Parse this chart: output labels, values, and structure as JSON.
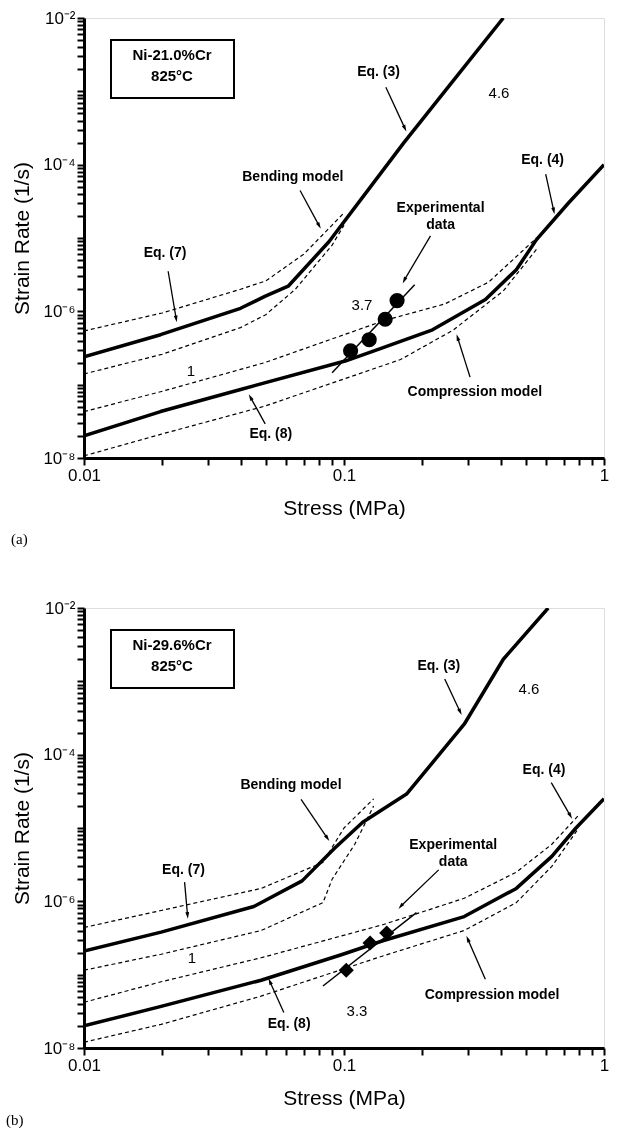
{
  "chart_data": [
    {
      "type": "line",
      "title": "Ni-21.0%Cr\n825°C",
      "xlabel": "Stress (MPa)",
      "ylabel": "Strain Rate (1/s)",
      "log": "xy",
      "grid": false,
      "xlim": [
        0.01,
        1
      ],
      "ylim": [
        1e-08,
        0.01
      ],
      "xticks": [
        0.01,
        {
          "value": 0.02,
          "label": null
        },
        {
          "value": 0.03,
          "label": null
        },
        {
          "value": 0.04,
          "label": null
        },
        {
          "value": 0.05,
          "label": null
        },
        {
          "value": 0.06,
          "label": null
        },
        {
          "value": 0.07,
          "label": null
        },
        {
          "value": 0.08,
          "label": null
        },
        {
          "value": 0.09,
          "label": null
        },
        0.1,
        {
          "value": 0.2,
          "label": null
        },
        {
          "value": 0.3,
          "label": null
        },
        {
          "value": 0.4,
          "label": null
        },
        {
          "value": 0.5,
          "label": null
        },
        {
          "value": 0.6,
          "label": null
        },
        {
          "value": 0.7,
          "label": null
        },
        {
          "value": 0.8,
          "label": null
        },
        {
          "value": 0.9,
          "label": null
        },
        1
      ],
      "yticks": [
        {
          "value": 1e-08,
          "label": "10⁻⁸"
        },
        {
          "value": 2e-08,
          "label": null
        },
        {
          "value": 3e-08,
          "label": null
        },
        {
          "value": 4e-08,
          "label": null
        },
        {
          "value": 5e-08,
          "label": null
        },
        {
          "value": 6e-08,
          "label": null
        },
        {
          "value": 7e-08,
          "label": null
        },
        {
          "value": 8e-08,
          "label": null
        },
        {
          "value": 9e-08,
          "label": null
        },
        {
          "value": 1e-07,
          "label": null
        },
        {
          "value": 2e-07,
          "label": null
        },
        {
          "value": 3e-07,
          "label": null
        },
        {
          "value": 4e-07,
          "label": null
        },
        {
          "value": 5e-07,
          "label": null
        },
        {
          "value": 6e-07,
          "label": null
        },
        {
          "value": 7e-07,
          "label": null
        },
        {
          "value": 8e-07,
          "label": null
        },
        {
          "value": 9e-07,
          "label": null
        },
        {
          "value": 1e-06,
          "label": "10⁻⁶"
        },
        {
          "value": 2e-06,
          "label": null
        },
        {
          "value": 3e-06,
          "label": null
        },
        {
          "value": 4e-06,
          "label": null
        },
        {
          "value": 5e-06,
          "label": null
        },
        {
          "value": 6e-06,
          "label": null
        },
        {
          "value": 7e-06,
          "label": null
        },
        {
          "value": 8e-06,
          "label": null
        },
        {
          "value": 9e-06,
          "label": null
        },
        {
          "value": 1e-05,
          "label": null
        },
        {
          "value": 2e-05,
          "label": null
        },
        {
          "value": 3e-05,
          "label": null
        },
        {
          "value": 4e-05,
          "label": null
        },
        {
          "value": 5e-05,
          "label": null
        },
        {
          "value": 6e-05,
          "label": null
        },
        {
          "value": 7e-05,
          "label": null
        },
        {
          "value": 8e-05,
          "label": null
        },
        {
          "value": 9e-05,
          "label": null
        },
        {
          "value": 0.0001,
          "label": "10⁻⁴"
        },
        {
          "value": 0.0002,
          "label": null
        },
        {
          "value": 0.0003,
          "label": null
        },
        {
          "value": 0.0004,
          "label": null
        },
        {
          "value": 0.0005,
          "label": null
        },
        {
          "value": 0.0006,
          "label": null
        },
        {
          "value": 0.0007,
          "label": null
        },
        {
          "value": 0.0008,
          "label": null
        },
        {
          "value": 0.0009,
          "label": null
        },
        {
          "value": 0.001,
          "label": null
        },
        {
          "value": 0.002,
          "label": null
        },
        {
          "value": 0.003,
          "label": null
        },
        {
          "value": 0.004,
          "label": null
        },
        {
          "value": 0.005,
          "label": null
        },
        {
          "value": 0.006,
          "label": null
        },
        {
          "value": 0.007,
          "label": null
        },
        {
          "value": 0.008,
          "label": null
        },
        {
          "value": 0.009,
          "label": null
        },
        {
          "value": 0.01,
          "label": "10⁻²"
        }
      ],
      "series": [
        {
          "color": "#000000",
          "line_style": "solid",
          "x": [
            0.01,
            0.0197,
            0.04,
            0.0496,
            0.061,
            0.0875,
            0.12,
            0.17,
            0.244,
            0.41
          ],
          "values": [
            2.4e-07,
            4.8e-07,
            1.1e-06,
            1.6e-06,
            2.2e-06,
            8.9e-06,
            3.9e-05,
            0.0002,
            0.001,
            0.01
          ]
        },
        {
          "color": "#000000",
          "line_style": "solid",
          "x": [
            0.01,
            0.0197,
            0.04,
            0.101,
            0.138,
            0.219,
            0.35,
            0.46,
            0.55,
            0.73,
            1.0
          ],
          "values": [
            2e-08,
            4.3e-08,
            8.6e-08,
            2.1e-07,
            3.1e-07,
            5.6e-07,
            1.45e-06,
            3.7e-06,
            9.5e-06,
            3e-05,
            0.0001
          ]
        },
        {
          "color": "#000000",
          "line_style": "dashed",
          "x": [
            0.01,
            0.02,
            0.04,
            0.05,
            0.07,
            0.09,
            0.1
          ],
          "values": [
            5.4e-07,
            9.5e-07,
            2e-06,
            2.6e-06,
            6e-06,
            1.5e-05,
            2.2e-05
          ]
        },
        {
          "color": "#000000",
          "line_style": "dashed",
          "x": [
            0.01,
            0.02,
            0.04,
            0.05,
            0.065,
            0.09,
            0.1
          ],
          "values": [
            1.4e-07,
            2.6e-07,
            6e-07,
            9e-07,
            2e-06,
            8e-06,
            1.5e-05
          ]
        },
        {
          "color": "#000000",
          "line_style": "dashed",
          "x": [
            0.01,
            0.0197,
            0.0496,
            0.143,
            0.244,
            0.36,
            0.55
          ],
          "values": [
            4.3e-08,
            8e-08,
            2e-07,
            7.5e-07,
            1.26e-06,
            2.5e-06,
            1e-05
          ]
        },
        {
          "color": "#000000",
          "line_style": "dashed",
          "x": [
            0.01,
            0.0197,
            0.0496,
            0.165,
            0.262,
            0.41,
            0.55
          ],
          "values": [
            1.07e-08,
            2.1e-08,
            5.1e-08,
            2.2e-07,
            5.5e-07,
            1.9e-06,
            7e-06
          ]
        },
        {
          "color": "#000000",
          "line_style": "solid",
          "x": [
            0.09,
            0.187
          ],
          "values": [
            1.45e-07,
            2.3e-06
          ]
        },
        {
          "type": "scatter",
          "color": "#000000",
          "marker": "circle",
          "x": [
            0.106,
            0.125,
            0.144,
            0.16
          ],
          "values": [
            2.9e-07,
            4.1e-07,
            7.8e-07,
            1.4e-06
          ]
        }
      ],
      "annotations": [
        {
          "text": "Eq.  (3)",
          "x": 0.171,
          "y": 0.00032
        },
        {
          "text": "Bending  model",
          "x": 0.08,
          "y": 1.5e-05
        },
        {
          "text": "Eq.  (4)",
          "x": 0.64,
          "y": 2.4e-05
        },
        {
          "text": "Experimental\ndata",
          "x": 0.171,
          "y": 2.7e-06
        },
        {
          "text": "Eq.  (7)",
          "x": 0.0226,
          "y": 8.1e-07
        },
        {
          "text": "Compression  model",
          "x": 0.274,
          "y": 4.3e-07
        },
        {
          "text": "Eq.  (8)",
          "x": 0.0438,
          "y": 6.6e-08
        },
        "4.6",
        "3.7",
        "1",
        "(a)"
      ]
    },
    {
      "type": "line",
      "title": "Ni-29.6%Cr\n825°C",
      "xlabel": "Stress (MPa)",
      "ylabel": "Strain Rate (1/s)",
      "log": "xy",
      "grid": false,
      "xlim": [
        0.01,
        1
      ],
      "ylim": [
        1e-08,
        0.01
      ],
      "xticks": [
        0.01,
        {
          "value": 0.02,
          "label": null
        },
        {
          "value": 0.03,
          "label": null
        },
        {
          "value": 0.04,
          "label": null
        },
        {
          "value": 0.05,
          "label": null
        },
        {
          "value": 0.06,
          "label": null
        },
        {
          "value": 0.07,
          "label": null
        },
        {
          "value": 0.08,
          "label": null
        },
        {
          "value": 0.09,
          "label": null
        },
        0.1,
        {
          "value": 0.2,
          "label": null
        },
        {
          "value": 0.3,
          "label": null
        },
        {
          "value": 0.4,
          "label": null
        },
        {
          "value": 0.5,
          "label": null
        },
        {
          "value": 0.6,
          "label": null
        },
        {
          "value": 0.7,
          "label": null
        },
        {
          "value": 0.8,
          "label": null
        },
        {
          "value": 0.9,
          "label": null
        },
        1
      ],
      "yticks": [
        {
          "value": 1e-08,
          "label": "10⁻⁸"
        },
        {
          "value": 2e-08,
          "label": null
        },
        {
          "value": 3e-08,
          "label": null
        },
        {
          "value": 4e-08,
          "label": null
        },
        {
          "value": 5e-08,
          "label": null
        },
        {
          "value": 6e-08,
          "label": null
        },
        {
          "value": 7e-08,
          "label": null
        },
        {
          "value": 8e-08,
          "label": null
        },
        {
          "value": 9e-08,
          "label": null
        },
        {
          "value": 1e-07,
          "label": null
        },
        {
          "value": 2e-07,
          "label": null
        },
        {
          "value": 3e-07,
          "label": null
        },
        {
          "value": 4e-07,
          "label": null
        },
        {
          "value": 5e-07,
          "label": null
        },
        {
          "value": 6e-07,
          "label": null
        },
        {
          "value": 7e-07,
          "label": null
        },
        {
          "value": 8e-07,
          "label": null
        },
        {
          "value": 9e-07,
          "label": null
        },
        {
          "value": 1e-06,
          "label": "10⁻⁶"
        },
        {
          "value": 2e-06,
          "label": null
        },
        {
          "value": 3e-06,
          "label": null
        },
        {
          "value": 4e-06,
          "label": null
        },
        {
          "value": 5e-06,
          "label": null
        },
        {
          "value": 6e-06,
          "label": null
        },
        {
          "value": 7e-06,
          "label": null
        },
        {
          "value": 8e-06,
          "label": null
        },
        {
          "value": 9e-06,
          "label": null
        },
        {
          "value": 1e-05,
          "label": null
        },
        {
          "value": 2e-05,
          "label": null
        },
        {
          "value": 3e-05,
          "label": null
        },
        {
          "value": 4e-05,
          "label": null
        },
        {
          "value": 5e-05,
          "label": null
        },
        {
          "value": 6e-05,
          "label": null
        },
        {
          "value": 7e-05,
          "label": null
        },
        {
          "value": 8e-05,
          "label": null
        },
        {
          "value": 9e-05,
          "label": null
        },
        {
          "value": 0.0001,
          "label": "10⁻⁴"
        },
        {
          "value": 0.0002,
          "label": null
        },
        {
          "value": 0.0003,
          "label": null
        },
        {
          "value": 0.0004,
          "label": null
        },
        {
          "value": 0.0005,
          "label": null
        },
        {
          "value": 0.0006,
          "label": null
        },
        {
          "value": 0.0007,
          "label": null
        },
        {
          "value": 0.0008,
          "label": null
        },
        {
          "value": 0.0009,
          "label": null
        },
        {
          "value": 0.001,
          "label": null
        },
        {
          "value": 0.002,
          "label": null
        },
        {
          "value": 0.003,
          "label": null
        },
        {
          "value": 0.004,
          "label": null
        },
        {
          "value": 0.005,
          "label": null
        },
        {
          "value": 0.006,
          "label": null
        },
        {
          "value": 0.007,
          "label": null
        },
        {
          "value": 0.008,
          "label": null
        },
        {
          "value": 0.009,
          "label": null
        },
        {
          "value": 0.01,
          "label": "10⁻²"
        }
      ],
      "series": [
        {
          "color": "#000000",
          "line_style": "solid",
          "x": [
            0.01,
            0.0198,
            0.045,
            0.069,
            0.092,
            0.118,
            0.174,
            0.29,
            0.41,
            0.61
          ],
          "values": [
            2.1e-07,
            3.8e-07,
            8.5e-07,
            1.9e-06,
            5.3e-06,
            1.2e-05,
            2.9e-05,
            0.00026,
            0.002,
            0.01
          ]
        },
        {
          "color": "#000000",
          "line_style": "solid",
          "x": [
            0.01,
            0.0198,
            0.048,
            0.099,
            0.141,
            0.29,
            0.46,
            0.63,
            0.78,
            1.0
          ],
          "values": [
            2e-08,
            3.7e-08,
            8.4e-08,
            1.9e-07,
            2.9e-07,
            6.2e-07,
            1.5e-06,
            4.1e-06,
            1e-05,
            2.5e-05
          ]
        },
        {
          "color": "#000000",
          "line_style": "dashed",
          "x": [
            0.01,
            0.0198,
            0.048,
            0.083,
            0.1,
            0.13
          ],
          "values": [
            4.4e-07,
            7.5e-07,
            1.5e-06,
            3.4e-06,
            1e-05,
            2.5e-05
          ]
        },
        {
          "color": "#000000",
          "line_style": "dashed",
          "x": [
            0.01,
            0.0198,
            0.048,
            0.083,
            0.09,
            0.11,
            0.13
          ],
          "values": [
            1.15e-07,
            1.9e-07,
            4e-07,
            9.6e-07,
            2e-06,
            6e-06,
            2e-05
          ]
        },
        {
          "color": "#000000",
          "line_style": "dashed",
          "x": [
            0.01,
            0.0198,
            0.048,
            0.141,
            0.29,
            0.46,
            0.63,
            0.8
          ],
          "values": [
            4.2e-08,
            8e-08,
            1.7e-07,
            4.8e-07,
            1.1e-06,
            2.5e-06,
            6e-06,
            1.5e-05
          ]
        },
        {
          "color": "#000000",
          "line_style": "dashed",
          "x": [
            0.01,
            0.0198,
            0.048,
            0.141,
            0.29,
            0.46,
            0.63,
            0.8
          ],
          "values": [
            1.2e-08,
            2.1e-08,
            5.1e-08,
            1.8e-07,
            4e-07,
            9.6e-07,
            3e-06,
            1e-05
          ]
        },
        {
          "color": "#000000",
          "line_style": "solid",
          "x": [
            0.083,
            0.19
          ],
          "values": [
            7e-08,
            7e-07
          ]
        },
        {
          "type": "scatter",
          "color": "#000000",
          "marker": "diamond",
          "x": [
            0.102,
            0.126,
            0.146
          ],
          "values": [
            1.15e-07,
            2.7e-07,
            3.7e-07
          ]
        }
      ],
      "annotations": [
        {
          "text": "Eq.  (3)",
          "x": 0.279,
          "y": 0.00039
        },
        {
          "text": "Bending model",
          "x": 0.086,
          "y": 7.4e-06
        },
        {
          "text": "Eq.  (4)",
          "x": 0.74,
          "y": 1.5e-05
        },
        {
          "text": "Experimental\ndata",
          "x": 0.166,
          "y": 8.7e-07
        },
        {
          "text": "Eq.  (7)",
          "x": 0.025,
          "y": 6.6e-07
        },
        {
          "text": "Compression  model",
          "x": 0.3,
          "y": 3e-07
        },
        {
          "text": "Eq.  (8)",
          "x": 0.052,
          "y": 7.9e-08
        },
        "4.6",
        "1",
        "3.3",
        "(b)"
      ]
    }
  ]
}
